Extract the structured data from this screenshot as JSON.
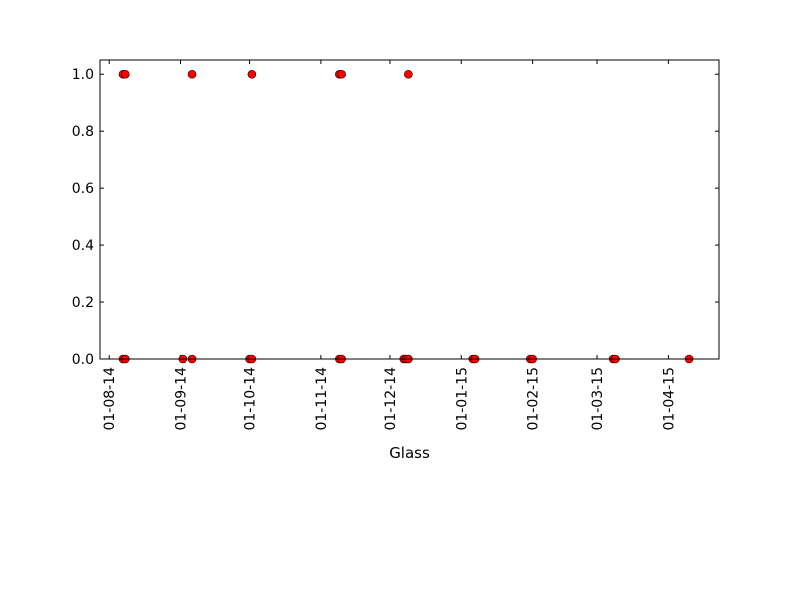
{
  "chart_data": {
    "type": "scatter",
    "title": "",
    "xlabel": "Glass",
    "ylabel": "",
    "xlim": [
      "2014-07-28",
      "2015-04-23"
    ],
    "ylim": [
      0,
      1.05
    ],
    "x_ticks": [
      "2014-08-01",
      "2014-09-01",
      "2014-10-01",
      "2014-11-01",
      "2014-12-01",
      "2015-01-01",
      "2015-02-01",
      "2015-03-01",
      "2015-04-01"
    ],
    "x_tick_labels": [
      "01-08-14",
      "01-09-14",
      "01-10-14",
      "01-11-14",
      "01-12-14",
      "01-01-15",
      "01-02-15",
      "01-03-15",
      "01-04-15"
    ],
    "y_ticks": [
      0.0,
      0.2,
      0.4,
      0.6,
      0.8,
      1.0
    ],
    "y_tick_labels": [
      "0.0",
      "0.2",
      "0.4",
      "0.6",
      "0.8",
      "1.0"
    ],
    "grid": false,
    "legend": "none",
    "marker_color": "#ff0000",
    "marker_edge_color": "#000000",
    "points": [
      {
        "x": "2014-08-07",
        "y": 1
      },
      {
        "x": "2014-08-08",
        "y": 1
      },
      {
        "x": "2014-08-07",
        "y": 0
      },
      {
        "x": "2014-08-08",
        "y": 0
      },
      {
        "x": "2014-09-02",
        "y": 0
      },
      {
        "x": "2014-09-06",
        "y": 1
      },
      {
        "x": "2014-09-06",
        "y": 0
      },
      {
        "x": "2014-10-01",
        "y": 0
      },
      {
        "x": "2014-10-02",
        "y": 0
      },
      {
        "x": "2014-10-02",
        "y": 1
      },
      {
        "x": "2014-11-09",
        "y": 1
      },
      {
        "x": "2014-11-10",
        "y": 1
      },
      {
        "x": "2014-11-09",
        "y": 0
      },
      {
        "x": "2014-11-10",
        "y": 0
      },
      {
        "x": "2014-12-07",
        "y": 0
      },
      {
        "x": "2014-12-08",
        "y": 0
      },
      {
        "x": "2014-12-09",
        "y": 0
      },
      {
        "x": "2014-12-09",
        "y": 1
      },
      {
        "x": "2015-01-06",
        "y": 0
      },
      {
        "x": "2015-01-07",
        "y": 0
      },
      {
        "x": "2015-01-31",
        "y": 0
      },
      {
        "x": "2015-02-01",
        "y": 0
      },
      {
        "x": "2015-03-08",
        "y": 0
      },
      {
        "x": "2015-03-09",
        "y": 0
      },
      {
        "x": "2015-04-10",
        "y": 0
      }
    ]
  }
}
